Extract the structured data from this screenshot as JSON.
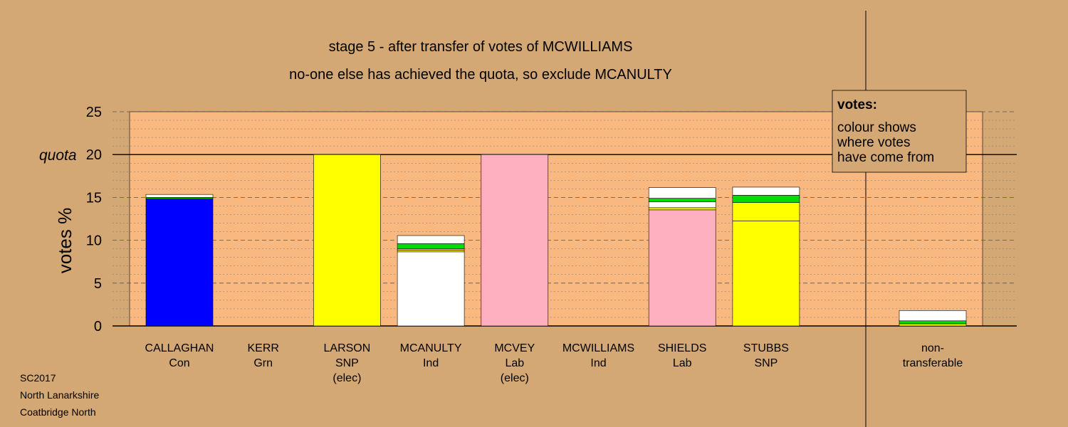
{
  "chart_data": {
    "type": "bar",
    "title": "stage 5 - after transfer of votes of MCWILLIAMS",
    "subtitle": "no-one else has achieved the quota, so exclude MCANULTY",
    "ylabel": "votes %",
    "ylim": [
      0,
      25
    ],
    "yticks": [
      0,
      5,
      10,
      15,
      20,
      25
    ],
    "quota": {
      "label": "quota",
      "value": 20
    },
    "grid": "dashed major every 5, dotted minor every 1",
    "legend": {
      "title": "votes:",
      "lines": [
        "colour shows",
        "where votes",
        "have come from"
      ],
      "placement": "top-right"
    },
    "categories": [
      {
        "name": "CALLAGHAN",
        "party": "Con",
        "note": "",
        "segments": [
          {
            "value": 14.85,
            "color": "#0000ff"
          },
          {
            "value": 0.15,
            "color": "#00dd00"
          },
          {
            "value": 0.35,
            "color": "#ffffff"
          }
        ]
      },
      {
        "name": "KERR",
        "party": "Grn",
        "note": "",
        "segments": []
      },
      {
        "name": "LARSON",
        "party": "SNP",
        "note": "(elec)",
        "segments": [
          {
            "value": 20,
            "color": "#ffff00"
          }
        ]
      },
      {
        "name": "MCANULTY",
        "party": "Ind",
        "note": "",
        "segments": [
          {
            "value": 8.65,
            "color": "#ffffff"
          },
          {
            "value": 0.2,
            "color": "#ffff00"
          },
          {
            "value": 0.15,
            "color": "#ffb0c0"
          },
          {
            "value": 0.6,
            "color": "#00dd00"
          },
          {
            "value": 0.95,
            "color": "#ffffff"
          }
        ]
      },
      {
        "name": "MCVEY",
        "party": "Lab",
        "note": "(elec)",
        "segments": [
          {
            "value": 20,
            "color": "#ffb0c0"
          }
        ]
      },
      {
        "name": "MCWILLIAMS",
        "party": "Ind",
        "note": "",
        "segments": []
      },
      {
        "name": "SHIELDS",
        "party": "Lab",
        "note": "",
        "segments": [
          {
            "value": 13.55,
            "color": "#ffb0c0"
          },
          {
            "value": 0.25,
            "color": "#ffff00"
          },
          {
            "value": 0.7,
            "color": "#ffffff"
          },
          {
            "value": 0.4,
            "color": "#00dd00"
          },
          {
            "value": 1.25,
            "color": "#ffffff"
          }
        ]
      },
      {
        "name": "STUBBS",
        "party": "SNP",
        "note": "",
        "segments": [
          {
            "value": 12.25,
            "color": "#ffff00"
          },
          {
            "value": 2.15,
            "color": "#ffff00"
          },
          {
            "value": 0.85,
            "color": "#00dd00"
          },
          {
            "value": 0.95,
            "color": "#ffffff"
          }
        ]
      }
    ],
    "nontransferable": {
      "line1": "non-",
      "line2": "transferable",
      "segments": [
        {
          "value": 0.25,
          "color": "#ffff00"
        },
        {
          "value": 0.35,
          "color": "#00dd00"
        },
        {
          "value": 1.2,
          "color": "#ffffff"
        }
      ]
    }
  },
  "footer": {
    "line1": "SC2017",
    "line2": "North Lanarkshire",
    "line3": "Coatbridge North"
  },
  "colors": {
    "background": "#d4a874",
    "plot_fill": "#f9b880"
  }
}
